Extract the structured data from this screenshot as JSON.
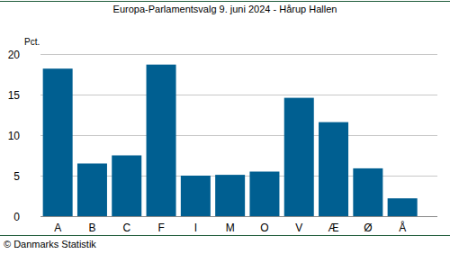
{
  "chart_data": {
    "type": "bar",
    "title": "Europa-Parlamentsvalg 9. juni 2024 - Hårup Hallen",
    "y_label": "Pct.",
    "source": "© Danmarks Statistik",
    "categories": [
      "A",
      "B",
      "C",
      "F",
      "I",
      "M",
      "O",
      "V",
      "Æ",
      "Ø",
      "Å"
    ],
    "values": [
      18.2,
      6.5,
      7.5,
      18.7,
      5.0,
      5.1,
      5.5,
      14.6,
      11.6,
      5.9,
      2.2
    ],
    "color": "#005f91",
    "ylim": [
      0,
      20
    ],
    "yticks": [
      0,
      5,
      10,
      15,
      20
    ],
    "grid": true
  }
}
